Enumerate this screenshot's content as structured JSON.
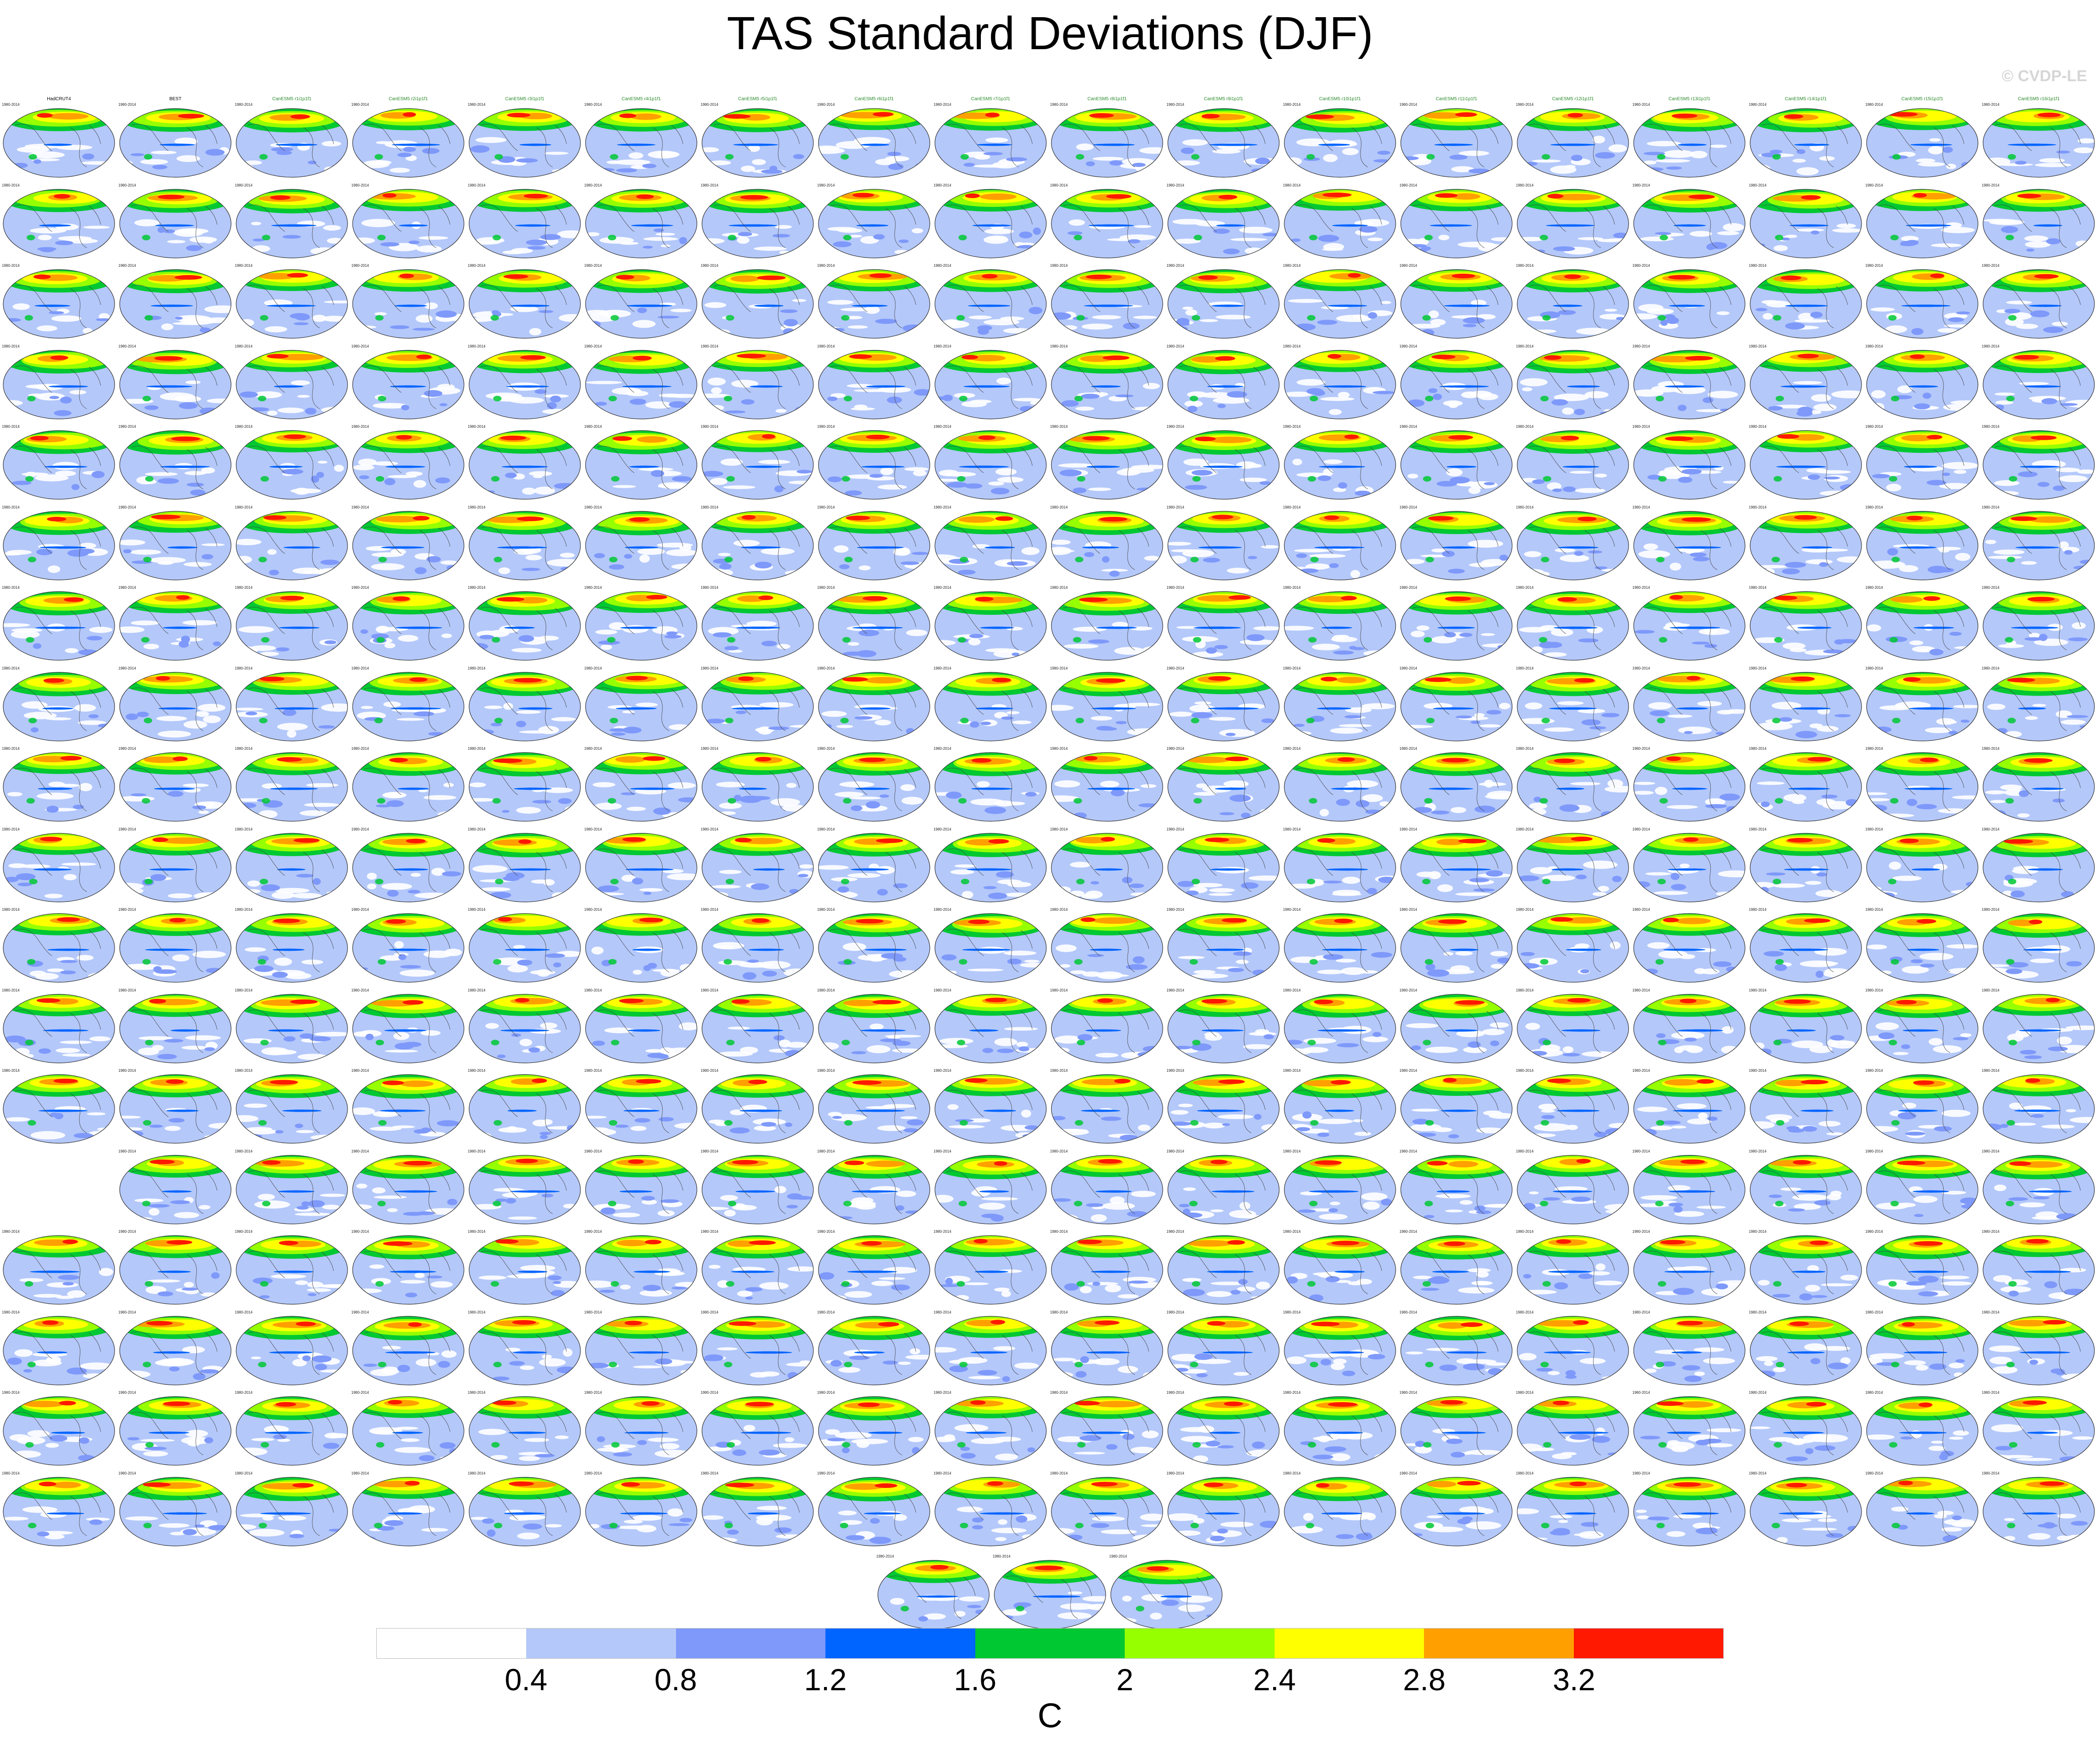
{
  "title": "TAS Standard Deviations (DJF)",
  "copyright": "© CVDP-LE",
  "panel_grid": {
    "rows": 18,
    "columns": 18,
    "empty_slots": [
      [
        13,
        0
      ]
    ],
    "extra_row_panels": 3,
    "panel_titles_row0": [
      "HadCRUT4",
      "BEST",
      "CanESM5 r1i1p1f1",
      "CanESM5 r2i1p1f1",
      "CanESM5 r3i1p1f1",
      "CanESM5 r4i1p1f1",
      "CanESM5 r5i1p1f1",
      "CanESM5 r6i1p1f1",
      "CanESM5 r7i1p1f1",
      "CanESM5 r8i1p1f1",
      "CanESM5 r9i1p1f1",
      "CanESM5 r10i1p1f1",
      "CanESM5 r11i1p1f1",
      "CanESM5 r12i1p1f1",
      "CanESM5 r13i1p1f1",
      "CanESM5 r14i1p1f1",
      "CanESM5 r15i1p1f1",
      "CanESM5 r16i1p1f1"
    ],
    "panel_years": "1980-2014"
  },
  "colorbar": {
    "colors": [
      "#ffffff",
      "#b4c8fa",
      "#7e99fa",
      "#0064ff",
      "#00c832",
      "#96ff00",
      "#ffff00",
      "#ffa000",
      "#ff1900"
    ],
    "tick_labels": [
      "0.4",
      "0.8",
      "1.2",
      "1.6",
      "2",
      "2.4",
      "2.8",
      "3.2"
    ],
    "unit": "C"
  },
  "map_colors": {
    "ocean_base": "#b4c8fa",
    "ocean_low": "#ffffff",
    "ocean_mid": "#7e99fa",
    "tropical_band": "#0064ff",
    "land_low": "#00c832",
    "land_mid": "#96ff00",
    "land_high": "#ffff00",
    "land_higher": "#ffa000",
    "land_peak": "#ff1900",
    "coastline": "#444444"
  }
}
